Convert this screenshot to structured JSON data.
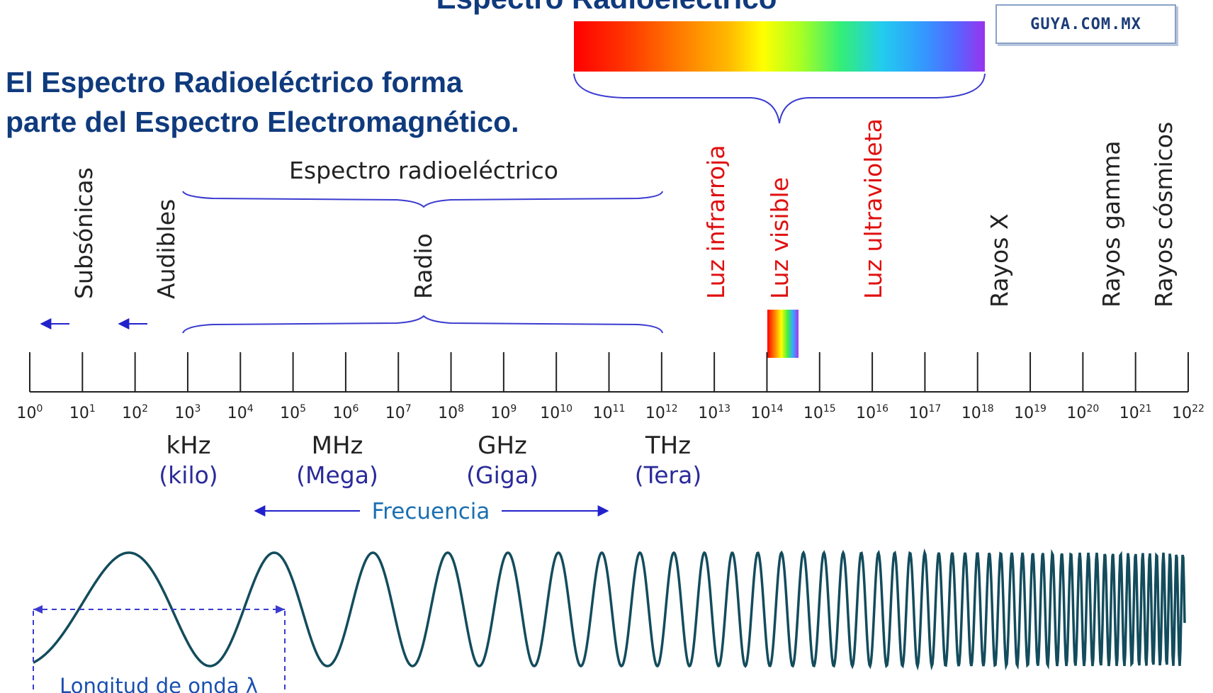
{
  "header": {
    "title": "Espectro Radioeléctrico",
    "subtitle_line1": "El Espectro Radioeléctrico forma",
    "subtitle_line2": "parte del Espectro Electromagnético.",
    "watermark": "GUYA.COM.MX"
  },
  "bands": {
    "subsonic": "Subsónicas",
    "audible": "Audibles",
    "radio_spectrum": "Espectro radioeléctrico",
    "radio": "Radio",
    "infrared": "Luz infrarroja",
    "visible": "Luz visible",
    "ultraviolet": "Luz ultravioleta",
    "xrays": "Rayos X",
    "gamma": "Rayos gamma",
    "cosmic": "Rayos cósmicos"
  },
  "axis": {
    "base": "10",
    "exponents": [
      "0",
      "1",
      "2",
      "3",
      "4",
      "5",
      "6",
      "7",
      "8",
      "9",
      "10",
      "11",
      "12",
      "13",
      "14",
      "15",
      "16",
      "17",
      "18",
      "19",
      "20",
      "21",
      "22"
    ]
  },
  "units": [
    {
      "symbol": "kHz",
      "name": "(kilo)"
    },
    {
      "symbol": "MHz",
      "name": "(Mega)"
    },
    {
      "symbol": "GHz",
      "name": "(Giga)"
    },
    {
      "symbol": "THz",
      "name": "(Tera)"
    }
  ],
  "frequency_label": "Frecuencia",
  "wavelength_label": "Longitud de onda λ",
  "colors": {
    "title": "#0f3a7d",
    "brace": "#3b3bd0",
    "red_label": "#e01010",
    "wave": "#134c5c",
    "unit_text": "#2a2a9a",
    "freq_text": "#1a6fb0"
  }
}
